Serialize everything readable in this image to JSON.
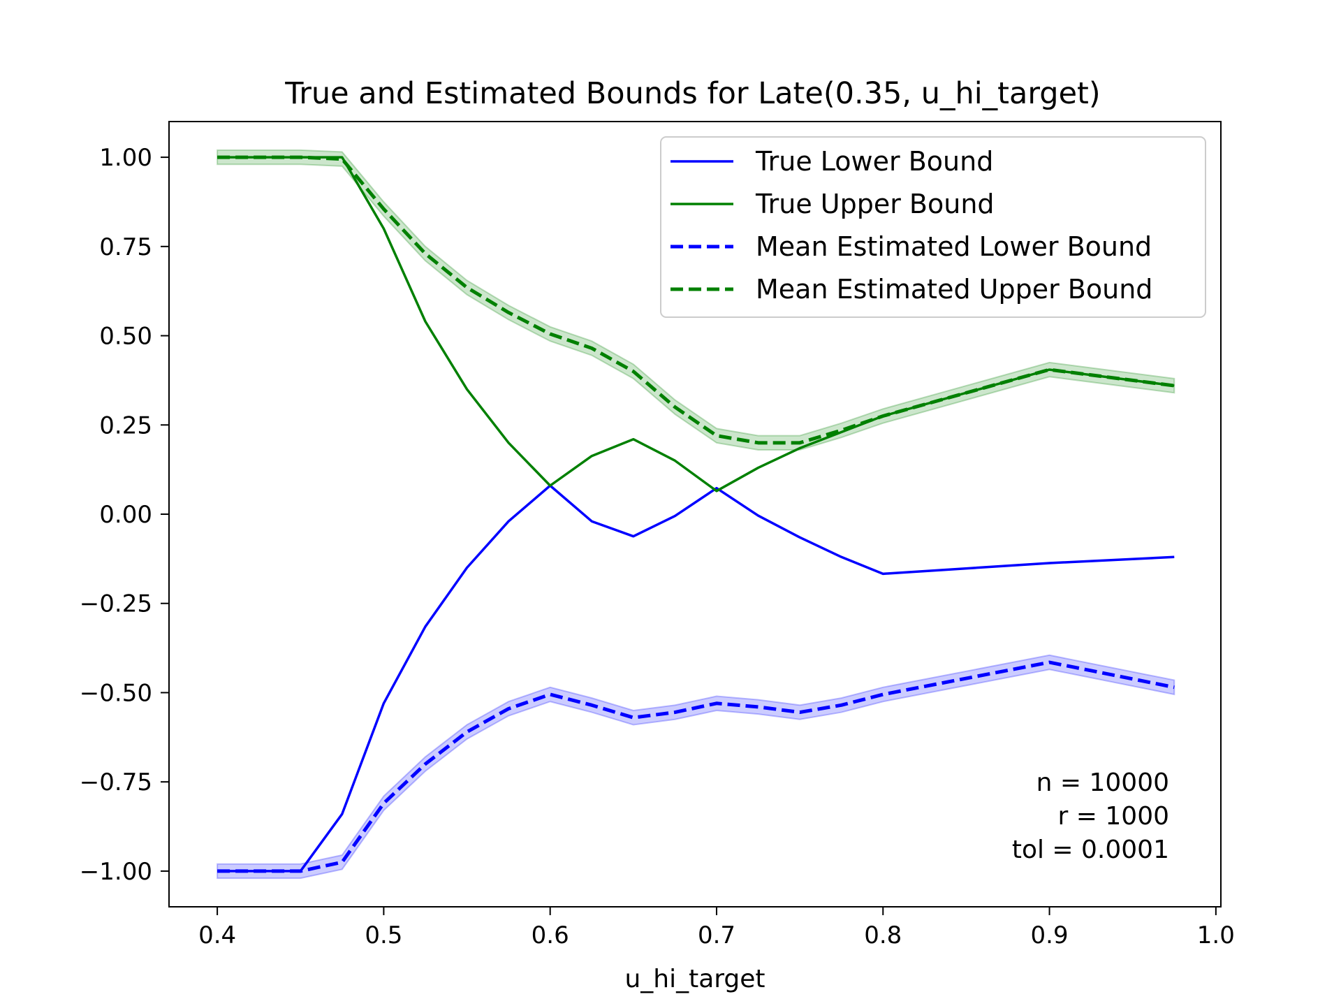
{
  "chart_data": {
    "type": "line",
    "title": "True and Estimated Bounds for Late(0.35, u_hi_target)",
    "xlabel": "u_hi_target",
    "ylabel": "",
    "xlim": [
      0.371,
      1.003
    ],
    "ylim": [
      -1.1,
      1.1
    ],
    "xticks": [
      {
        "value": 0.4,
        "label": "0.4"
      },
      {
        "value": 0.5,
        "label": "0.5"
      },
      {
        "value": 0.6,
        "label": "0.6"
      },
      {
        "value": 0.7,
        "label": "0.7"
      },
      {
        "value": 0.8,
        "label": "0.8"
      },
      {
        "value": 0.9,
        "label": "0.9"
      },
      {
        "value": 1.0,
        "label": "1.0"
      }
    ],
    "yticks": [
      {
        "value": 1.0,
        "label": "1.00"
      },
      {
        "value": 0.75,
        "label": "0.75"
      },
      {
        "value": 0.5,
        "label": "0.50"
      },
      {
        "value": 0.25,
        "label": "0.25"
      },
      {
        "value": 0.0,
        "label": "0.00"
      },
      {
        "value": -0.25,
        "label": "−0.25"
      },
      {
        "value": -0.5,
        "label": "−0.50"
      },
      {
        "value": -0.75,
        "label": "−0.75"
      },
      {
        "value": -1.0,
        "label": "−1.00"
      }
    ],
    "grid": false,
    "legend_position": "top-right",
    "series": [
      {
        "name": "True Lower Bound",
        "color": "#0000ff",
        "style": "solid",
        "x": [
          0.4,
          0.45,
          0.475,
          0.5,
          0.525,
          0.55,
          0.575,
          0.6,
          0.625,
          0.65,
          0.675,
          0.7,
          0.725,
          0.75,
          0.775,
          0.8,
          0.9,
          0.975
        ],
        "y": [
          -1.0,
          -1.0,
          -0.84,
          -0.53,
          -0.315,
          -0.15,
          -0.02,
          0.08,
          -0.02,
          -0.062,
          -0.005,
          0.073,
          -0.004,
          -0.065,
          -0.12,
          -0.167,
          -0.137,
          -0.12
        ]
      },
      {
        "name": "True Upper Bound",
        "color": "#008000",
        "style": "solid",
        "x": [
          0.4,
          0.45,
          0.475,
          0.5,
          0.525,
          0.55,
          0.575,
          0.6,
          0.625,
          0.65,
          0.675,
          0.7,
          0.725,
          0.75,
          0.775,
          0.8,
          0.9,
          0.975
        ],
        "y": [
          1.0,
          1.0,
          1.0,
          0.8,
          0.54,
          0.35,
          0.2,
          0.08,
          0.163,
          0.21,
          0.15,
          0.065,
          0.13,
          0.185,
          0.23,
          0.275,
          0.405,
          0.36
        ]
      },
      {
        "name": "Mean Estimated Lower Bound",
        "color": "#0000ff",
        "style": "dashed",
        "band": 0.02,
        "x": [
          0.4,
          0.45,
          0.475,
          0.5,
          0.525,
          0.55,
          0.575,
          0.6,
          0.625,
          0.65,
          0.675,
          0.7,
          0.725,
          0.75,
          0.775,
          0.8,
          0.9,
          0.975
        ],
        "y": [
          -1.0,
          -1.0,
          -0.975,
          -0.81,
          -0.7,
          -0.61,
          -0.545,
          -0.505,
          -0.535,
          -0.57,
          -0.555,
          -0.53,
          -0.54,
          -0.555,
          -0.535,
          -0.505,
          -0.415,
          -0.485
        ]
      },
      {
        "name": "Mean Estimated Upper Bound",
        "color": "#008000",
        "style": "dashed",
        "band": 0.02,
        "x": [
          0.4,
          0.45,
          0.475,
          0.5,
          0.525,
          0.55,
          0.575,
          0.6,
          0.625,
          0.65,
          0.675,
          0.7,
          0.725,
          0.75,
          0.775,
          0.8,
          0.9,
          0.975
        ],
        "y": [
          1.0,
          1.0,
          0.995,
          0.855,
          0.73,
          0.635,
          0.565,
          0.505,
          0.465,
          0.4,
          0.3,
          0.22,
          0.2,
          0.2,
          0.235,
          0.275,
          0.405,
          0.36
        ]
      }
    ],
    "annotations": [
      "n = 10000",
      "r = 1000",
      "tol = 0.0001"
    ]
  }
}
